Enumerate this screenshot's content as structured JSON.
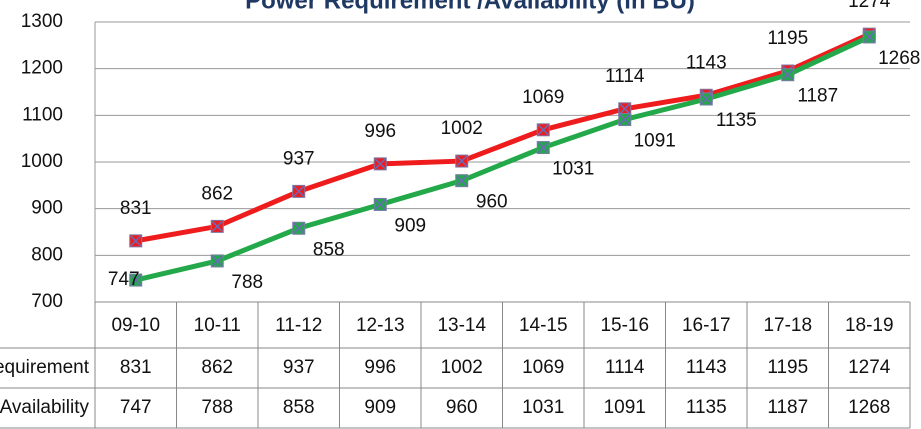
{
  "chart_data": {
    "type": "line",
    "title": "Power Requirement /Availability (in BU)",
    "categories": [
      "09-10",
      "10-11",
      "11-12",
      "12-13",
      "13-14",
      "14-15",
      "15-16",
      "16-17",
      "17-18",
      "18-19"
    ],
    "series": [
      {
        "name": "Requirement",
        "color": "#ee1c1c",
        "values": [
          831,
          862,
          937,
          996,
          1002,
          1069,
          1114,
          1143,
          1195,
          1274
        ]
      },
      {
        "name": "Availability",
        "color": "#23a84a",
        "values": [
          747,
          788,
          858,
          909,
          960,
          1031,
          1091,
          1135,
          1187,
          1268
        ]
      }
    ],
    "ylim": [
      700,
      1300
    ],
    "yticks": [
      700,
      800,
      900,
      1000,
      1100,
      1200,
      1300
    ],
    "grid": true
  }
}
